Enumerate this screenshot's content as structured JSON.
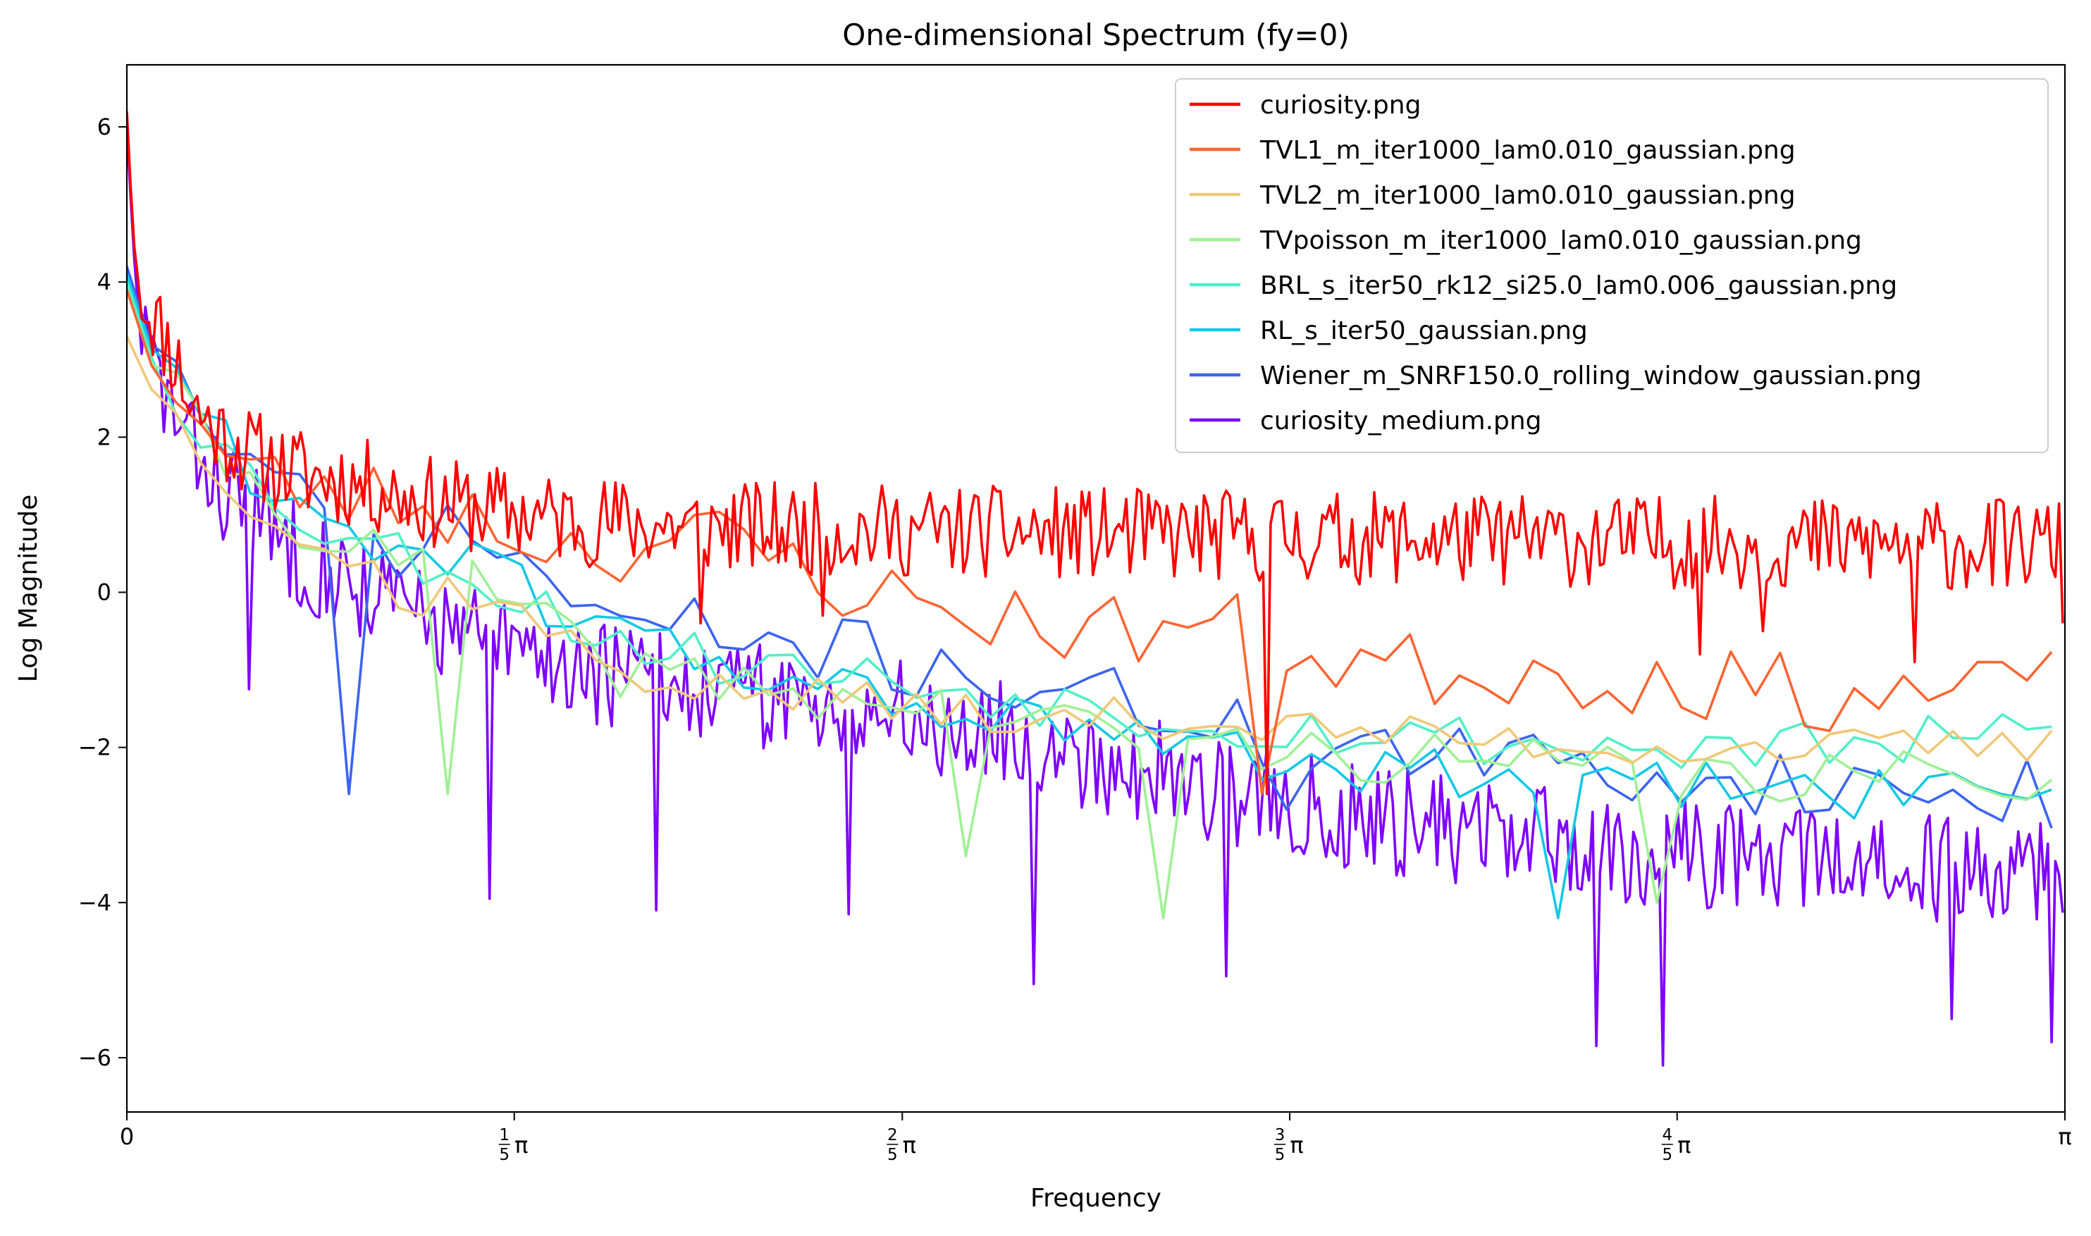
{
  "chart_data": {
    "type": "line",
    "title": "One-dimensional Spectrum (fy=0)",
    "xlabel": "Frequency",
    "ylabel": "Log Magnitude",
    "xlim": [
      0,
      3.14159
    ],
    "ylim": [
      -6.7,
      6.8
    ],
    "grid": false,
    "legend_position": "top-right",
    "x_ticks": [
      {
        "value": 0,
        "label": "0",
        "num": "",
        "den": ""
      },
      {
        "value": 0.628,
        "label": "π",
        "num": "1",
        "den": "5"
      },
      {
        "value": 1.257,
        "label": "π",
        "num": "2",
        "den": "5"
      },
      {
        "value": 1.885,
        "label": "π",
        "num": "3",
        "den": "5"
      },
      {
        "value": 2.513,
        "label": "π",
        "num": "4",
        "den": "5"
      },
      {
        "value": 3.14159,
        "label": "π",
        "num": "",
        "den": ""
      }
    ],
    "y_ticks": [
      {
        "value": -6,
        "label": "−6"
      },
      {
        "value": -4,
        "label": "−4"
      },
      {
        "value": -2,
        "label": "−2"
      },
      {
        "value": 0,
        "label": "0"
      },
      {
        "value": 2,
        "label": "2"
      },
      {
        "value": 4,
        "label": "4"
      },
      {
        "value": 6,
        "label": "6"
      }
    ],
    "series": [
      {
        "name": "curiosity.png",
        "color": "#ff0000",
        "step": 0.006,
        "anchors": [
          [
            0,
            6.2
          ],
          [
            0.01,
            4.6
          ],
          [
            0.02,
            3.9
          ],
          [
            0.04,
            3.6
          ],
          [
            0.06,
            3.3
          ],
          [
            0.08,
            3.0
          ],
          [
            0.1,
            2.5
          ],
          [
            0.13,
            2.2
          ],
          [
            0.16,
            2.0
          ],
          [
            0.2,
            1.8
          ],
          [
            0.25,
            1.6
          ],
          [
            0.3,
            1.5
          ],
          [
            0.35,
            1.45
          ],
          [
            0.4,
            1.35
          ],
          [
            0.45,
            1.25
          ],
          [
            0.5,
            1.15
          ],
          [
            0.6,
            1.05
          ],
          [
            0.7,
            0.95
          ],
          [
            0.9,
            0.85
          ],
          [
            1.2,
            0.8
          ],
          [
            1.6,
            0.75
          ],
          [
            2.0,
            0.7
          ],
          [
            2.5,
            0.65
          ],
          [
            3.14159,
            0.6
          ]
        ],
        "amp": 0.6,
        "seed": 11,
        "spikes": [
          [
            1.85,
            -2.6
          ],
          [
            2.9,
            -0.9
          ],
          [
            0.93,
            -0.4
          ],
          [
            1.13,
            -0.3
          ],
          [
            2.65,
            -0.5
          ],
          [
            2.55,
            -0.8
          ],
          [
            3.14,
            -0.4
          ]
        ]
      },
      {
        "name": "TVL1_m_iter1000_lam0.010_gaussian.png",
        "color": "#ff6432",
        "step": 0.04,
        "anchors": [
          [
            0,
            3.9
          ],
          [
            0.05,
            3.0
          ],
          [
            0.1,
            2.3
          ],
          [
            0.15,
            1.8
          ],
          [
            0.2,
            1.5
          ],
          [
            0.3,
            1.3
          ],
          [
            0.4,
            1.2
          ],
          [
            0.5,
            1.1
          ],
          [
            0.6,
            0.9
          ],
          [
            0.7,
            0.6
          ],
          [
            0.8,
            0.6
          ],
          [
            0.9,
            0.7
          ],
          [
            1.0,
            0.6
          ],
          [
            1.1,
            0.3
          ],
          [
            1.2,
            0.0
          ],
          [
            1.3,
            -0.2
          ],
          [
            1.4,
            -0.3
          ],
          [
            1.5,
            -0.4
          ],
          [
            1.6,
            -0.5
          ],
          [
            1.7,
            -0.4
          ],
          [
            1.8,
            -0.5
          ],
          [
            1.9,
            -0.8
          ],
          [
            2.0,
            -0.9
          ],
          [
            2.1,
            -1.0
          ],
          [
            2.2,
            -1.0
          ],
          [
            2.3,
            -1.0
          ],
          [
            2.4,
            -1.1
          ],
          [
            2.5,
            -1.1
          ],
          [
            2.6,
            -1.2
          ],
          [
            2.7,
            -1.3
          ],
          [
            2.8,
            -1.3
          ],
          [
            2.9,
            -1.3
          ],
          [
            3.0,
            -1.4
          ],
          [
            3.14159,
            -1.2
          ]
        ],
        "amp": 0.5,
        "seed": 23,
        "spikes": [
          [
            1.84,
            -2.6
          ],
          [
            2.99,
            -2.6
          ],
          [
            3.0,
            -0.9
          ]
        ]
      },
      {
        "name": "TVL2_m_iter1000_lam0.010_gaussian.png",
        "color": "#f0c878",
        "step": 0.04,
        "anchors": [
          [
            0,
            3.3
          ],
          [
            0.05,
            2.6
          ],
          [
            0.1,
            2.0
          ],
          [
            0.2,
            1.2
          ],
          [
            0.3,
            0.6
          ],
          [
            0.4,
            0.3
          ],
          [
            0.5,
            0.1
          ],
          [
            0.6,
            -0.1
          ],
          [
            0.7,
            -0.6
          ],
          [
            0.8,
            -1.0
          ],
          [
            0.9,
            -1.2
          ],
          [
            1.0,
            -1.3
          ],
          [
            1.2,
            -1.4
          ],
          [
            1.4,
            -1.5
          ],
          [
            1.6,
            -1.6
          ],
          [
            1.8,
            -1.7
          ],
          [
            2.0,
            -1.8
          ],
          [
            2.2,
            -1.9
          ],
          [
            2.4,
            -2.0
          ],
          [
            2.6,
            -2.0
          ],
          [
            2.8,
            -2.0
          ],
          [
            3.0,
            -2.0
          ],
          [
            3.14159,
            -2.0
          ]
        ],
        "amp": 0.25,
        "seed": 37,
        "spikes": [
          [
            0.45,
            -0.3
          ],
          [
            0.46,
            -0.25
          ],
          [
            0.46,
            -0.3
          ],
          [
            0.45,
            -0.2
          ],
          [
            0.45,
            -0.2
          ],
          [
            0.45,
            -0.2
          ],
          [
            1.4,
            -1.8
          ],
          [
            1.44,
            -1.9
          ],
          [
            1.44,
            -1.9
          ],
          [
            1.44,
            -1.9
          ],
          [
            1.44,
            -1.9
          ],
          [
            1.44,
            -1.9
          ],
          [
            1.45,
            -1.8
          ]
        ]
      },
      {
        "name": "TVpoisson_m_iter1000_lam0.010_gaussian.png",
        "color": "#a0f096",
        "step": 0.04,
        "anchors": [
          [
            0,
            3.9
          ],
          [
            0.05,
            2.9
          ],
          [
            0.1,
            2.2
          ],
          [
            0.2,
            1.4
          ],
          [
            0.3,
            0.8
          ],
          [
            0.4,
            0.5
          ],
          [
            0.5,
            0.3
          ],
          [
            0.6,
            0.0
          ],
          [
            0.7,
            -0.6
          ],
          [
            0.8,
            -1.0
          ],
          [
            0.9,
            -1.1
          ],
          [
            1.0,
            -1.2
          ],
          [
            1.2,
            -1.4
          ],
          [
            1.4,
            -1.6
          ],
          [
            1.6,
            -1.8
          ],
          [
            1.8,
            -2.0
          ],
          [
            2.0,
            -2.1
          ],
          [
            2.2,
            -2.2
          ],
          [
            2.4,
            -2.3
          ],
          [
            2.6,
            -2.4
          ],
          [
            2.8,
            -2.4
          ],
          [
            3.0,
            -2.4
          ],
          [
            3.14159,
            -2.3
          ]
        ],
        "amp": 0.35,
        "seed": 41,
        "spikes": [
          [
            0.5,
            -2.6
          ],
          [
            1.35,
            -3.4
          ],
          [
            1.7,
            -4.2
          ],
          [
            2.47,
            -4.0
          ]
        ]
      },
      {
        "name": "BRL_s_iter50_rk12_si25.0_lam0.006_gaussian.png",
        "color": "#50f0c8",
        "step": 0.04,
        "anchors": [
          [
            0,
            4.0
          ],
          [
            0.05,
            3.0
          ],
          [
            0.1,
            2.3
          ],
          [
            0.2,
            1.5
          ],
          [
            0.3,
            0.9
          ],
          [
            0.4,
            0.6
          ],
          [
            0.5,
            0.4
          ],
          [
            0.6,
            0.1
          ],
          [
            0.7,
            -0.3
          ],
          [
            0.8,
            -0.6
          ],
          [
            0.9,
            -0.8
          ],
          [
            1.0,
            -0.9
          ],
          [
            1.2,
            -1.1
          ],
          [
            1.4,
            -1.3
          ],
          [
            1.6,
            -1.5
          ],
          [
            1.8,
            -1.7
          ],
          [
            2.0,
            -1.8
          ],
          [
            2.2,
            -1.9
          ],
          [
            2.4,
            -2.0
          ],
          [
            2.6,
            -2.0
          ],
          [
            2.8,
            -2.0
          ],
          [
            3.0,
            -1.9
          ],
          [
            3.14159,
            -1.8
          ]
        ],
        "amp": 0.35,
        "seed": 53,
        "spikes": []
      },
      {
        "name": "RL_s_iter50_gaussian.png",
        "color": "#14c8e6",
        "step": 0.04,
        "anchors": [
          [
            0,
            4.1
          ],
          [
            0.05,
            3.1
          ],
          [
            0.1,
            2.4
          ],
          [
            0.2,
            1.6
          ],
          [
            0.3,
            1.0
          ],
          [
            0.4,
            0.7
          ],
          [
            0.5,
            0.5
          ],
          [
            0.6,
            0.2
          ],
          [
            0.7,
            -0.2
          ],
          [
            0.8,
            -0.5
          ],
          [
            0.9,
            -0.8
          ],
          [
            1.0,
            -1.0
          ],
          [
            1.2,
            -1.3
          ],
          [
            1.4,
            -1.6
          ],
          [
            1.6,
            -1.9
          ],
          [
            1.8,
            -2.1
          ],
          [
            2.0,
            -2.3
          ],
          [
            2.2,
            -2.4
          ],
          [
            2.4,
            -2.5
          ],
          [
            2.6,
            -2.5
          ],
          [
            2.8,
            -2.6
          ],
          [
            3.0,
            -2.6
          ],
          [
            3.14159,
            -2.5
          ]
        ],
        "amp": 0.35,
        "seed": 61,
        "spikes": [
          [
            2.34,
            -4.2
          ]
        ]
      },
      {
        "name": "Wiener_m_SNRF150.0_rolling_window_gaussian.png",
        "color": "#3c64f0",
        "step": 0.04,
        "anchors": [
          [
            0,
            4.2
          ],
          [
            0.05,
            3.2
          ],
          [
            0.1,
            2.5
          ],
          [
            0.2,
            1.6
          ],
          [
            0.3,
            1.0
          ],
          [
            0.4,
            0.6
          ],
          [
            0.5,
            0.7
          ],
          [
            0.6,
            0.7
          ],
          [
            0.7,
            0.0
          ],
          [
            0.8,
            -0.4
          ],
          [
            0.9,
            -0.5
          ],
          [
            1.0,
            -0.6
          ],
          [
            1.2,
            -0.8
          ],
          [
            1.4,
            -1.1
          ],
          [
            1.6,
            -1.4
          ],
          [
            1.8,
            -1.8
          ],
          [
            2.0,
            -2.0
          ],
          [
            2.2,
            -2.2
          ],
          [
            2.4,
            -2.3
          ],
          [
            2.6,
            -2.4
          ],
          [
            2.8,
            -2.5
          ],
          [
            3.0,
            -2.6
          ],
          [
            3.14159,
            -2.6
          ]
        ],
        "amp": 0.45,
        "seed": 71,
        "spikes": [
          [
            0.37,
            -2.6
          ],
          [
            1.9,
            -2.8
          ]
        ]
      },
      {
        "name": "curiosity_medium.png",
        "color": "#7f00ff",
        "step": 0.006,
        "anchors": [
          [
            0,
            6.0
          ],
          [
            0.01,
            4.5
          ],
          [
            0.02,
            3.5
          ],
          [
            0.04,
            3.0
          ],
          [
            0.06,
            2.6
          ],
          [
            0.08,
            2.2
          ],
          [
            0.1,
            1.9
          ],
          [
            0.13,
            1.6
          ],
          [
            0.16,
            1.3
          ],
          [
            0.2,
            1.1
          ],
          [
            0.25,
            0.7
          ],
          [
            0.3,
            0.4
          ],
          [
            0.35,
            0.2
          ],
          [
            0.4,
            0.0
          ],
          [
            0.45,
            -0.2
          ],
          [
            0.5,
            -0.4
          ],
          [
            0.6,
            -0.7
          ],
          [
            0.7,
            -0.9
          ],
          [
            0.8,
            -1.1
          ],
          [
            0.9,
            -1.2
          ],
          [
            1.0,
            -1.3
          ],
          [
            1.2,
            -1.5
          ],
          [
            1.4,
            -1.8
          ],
          [
            1.6,
            -2.2
          ],
          [
            1.8,
            -2.6
          ],
          [
            2.0,
            -2.9
          ],
          [
            2.2,
            -3.1
          ],
          [
            2.4,
            -3.3
          ],
          [
            2.6,
            -3.4
          ],
          [
            2.8,
            -3.5
          ],
          [
            3.0,
            -3.6
          ],
          [
            3.14159,
            -3.5
          ]
        ],
        "amp": 0.7,
        "seed": 83,
        "spikes": [
          [
            0.2,
            -1.25
          ],
          [
            0.59,
            -3.95
          ],
          [
            0.86,
            -4.1
          ],
          [
            1.17,
            -4.15
          ],
          [
            1.47,
            -5.05
          ],
          [
            1.78,
            -4.95
          ],
          [
            2.38,
            -5.85
          ],
          [
            2.49,
            -6.1
          ],
          [
            2.96,
            -5.5
          ],
          [
            3.12,
            -5.8
          ]
        ]
      }
    ]
  }
}
